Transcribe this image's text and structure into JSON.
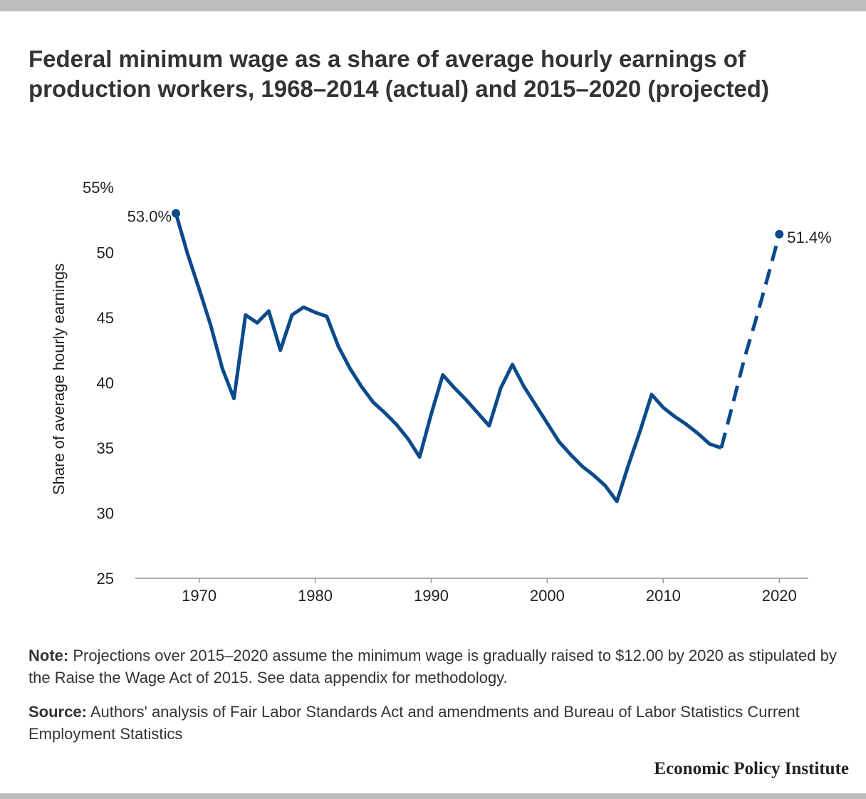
{
  "title": "Federal minimum wage as a share of average hourly earnings of production workers, 1968–2014 (actual) and 2015–2020 (projected)",
  "note": {
    "label": "Note:",
    "text": " Projections over 2015–2020 assume the minimum wage is gradually raised to $12.00 by 2020 as stipulated by the Raise the Wage Act of 2015. See data appendix for methodology."
  },
  "source": {
    "label": "Source:",
    "text": " Authors' analysis of Fair Labor Standards Act and amendments and Bureau of Labor Statistics Current Employment Statistics"
  },
  "brand": "Economic Policy Institute",
  "chart_data": {
    "type": "line",
    "title": "Federal minimum wage as a share of average hourly earnings of production workers, 1968–2014 (actual) and 2015–2020 (projected)",
    "xlabel": "",
    "ylabel": "Share of average hourly earnings",
    "xlim": [
      1964.5,
      2022.5
    ],
    "ylim": [
      25,
      55
    ],
    "x_ticks": [
      1970,
      1980,
      1990,
      2000,
      2010,
      2020
    ],
    "y_ticks": [
      {
        "value": 25,
        "label": "25"
      },
      {
        "value": 30,
        "label": "30"
      },
      {
        "value": 35,
        "label": "35"
      },
      {
        "value": 40,
        "label": "40"
      },
      {
        "value": 45,
        "label": "45"
      },
      {
        "value": 50,
        "label": "50"
      },
      {
        "value": 55,
        "label": "55%"
      }
    ],
    "grid": false,
    "colors": {
      "line": "#0b4a8b"
    },
    "series": [
      {
        "style": "solid",
        "x": [
          1968,
          1969,
          1970,
          1971,
          1972,
          1973,
          1974,
          1975,
          1976,
          1977,
          1978,
          1979,
          1980,
          1981,
          1982,
          1983,
          1984,
          1985,
          1986,
          1987,
          1988,
          1989,
          1990,
          1991,
          1992,
          1993,
          1994,
          1995,
          1996,
          1997,
          1998,
          1999,
          2000,
          2001,
          2002,
          2003,
          2004,
          2005,
          2006,
          2007,
          2008,
          2009,
          2010,
          2011,
          2012,
          2013,
          2014,
          2015
        ],
        "y": [
          53.0,
          49.9,
          47.2,
          44.4,
          41.1,
          38.8,
          45.2,
          44.6,
          45.5,
          42.5,
          45.2,
          45.8,
          45.4,
          45.1,
          42.8,
          41.1,
          39.7,
          38.5,
          37.7,
          36.8,
          35.7,
          34.3,
          37.6,
          40.6,
          39.6,
          38.7,
          37.7,
          36.7,
          39.6,
          41.4,
          39.7,
          38.3,
          36.9,
          35.5,
          34.5,
          33.6,
          32.9,
          32.1,
          30.9,
          33.7,
          36.3,
          39.1,
          38.1,
          37.4,
          36.8,
          36.1,
          35.3,
          35.0
        ]
      },
      {
        "style": "dashed",
        "x": [
          2015,
          2016,
          2017,
          2018,
          2019,
          2020
        ],
        "y": [
          35.0,
          38.4,
          41.9,
          44.9,
          48.1,
          51.4
        ]
      }
    ],
    "annotations": [
      {
        "x": 1968,
        "y": 53.0,
        "text": "53.0%",
        "side": "left"
      },
      {
        "x": 2020,
        "y": 51.4,
        "text": "51.4%",
        "side": "right"
      }
    ]
  }
}
